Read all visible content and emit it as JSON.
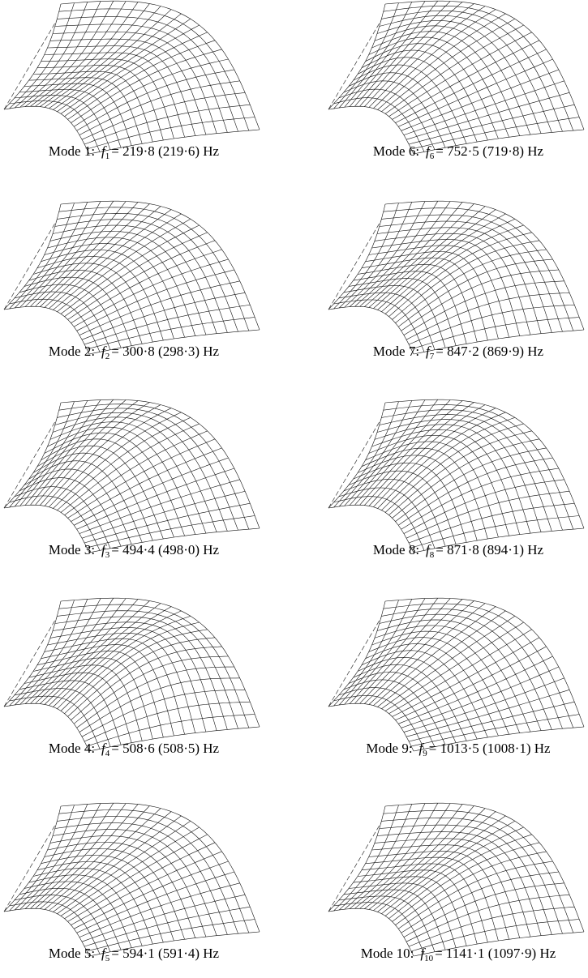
{
  "figure": {
    "panels": [
      {
        "mode": "Mode 1:",
        "symbol": "f",
        "subscript": "1",
        "text": "= 219·8 (219·6) Hz"
      },
      {
        "mode": "Mode 2:",
        "symbol": "f",
        "subscript": "2",
        "text": "= 300·8 (298·3) Hz"
      },
      {
        "mode": "Mode 3:",
        "symbol": "f",
        "subscript": "3",
        "text": "= 494·4 (498·0) Hz"
      },
      {
        "mode": "Mode 4:",
        "symbol": "f",
        "subscript": "4",
        "text": "= 508·6 (508·5) Hz"
      },
      {
        "mode": "Mode 5:",
        "symbol": "f",
        "subscript": "5",
        "text": "= 594·1 (591·4) Hz"
      },
      {
        "mode": "Mode 6:",
        "symbol": "f",
        "subscript": "6",
        "text": "= 752·5 (719·8) Hz"
      },
      {
        "mode": "Mode 7:",
        "symbol": "f",
        "subscript": "7",
        "text": "= 847·2 (869·9) Hz"
      },
      {
        "mode": "Mode 8:",
        "symbol": "f",
        "subscript": "8",
        "text": "= 871·8 (894·1) Hz"
      },
      {
        "mode": "Mode 9:",
        "symbol": "f",
        "subscript": "9",
        "text": "= 1013·5 (1008·1) Hz"
      },
      {
        "mode": "Mode 10:",
        "symbol": "f",
        "subscript": "10",
        "text": "= 1141·1 (1097·9) Hz"
      }
    ]
  }
}
